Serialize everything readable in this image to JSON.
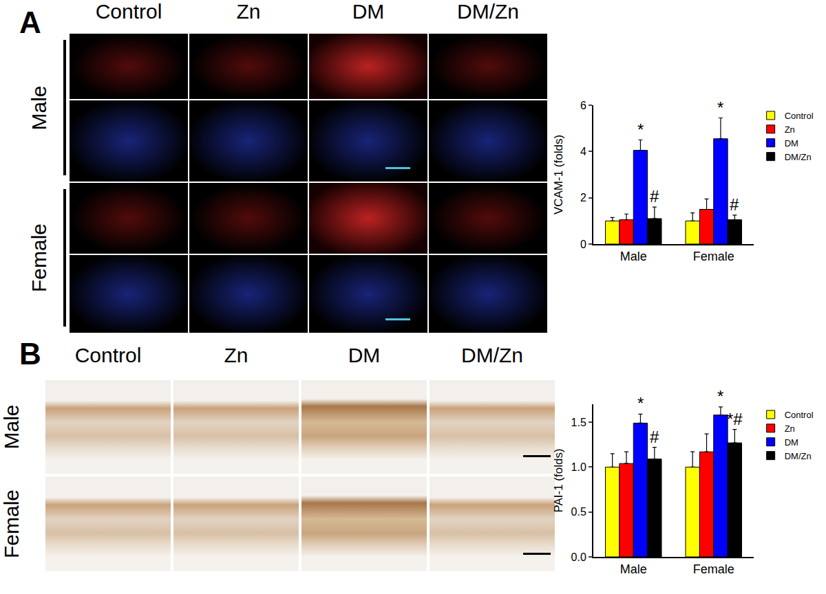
{
  "panels": [
    {
      "label": "A",
      "columns": [
        "Control",
        "Zn",
        "DM",
        "DM/Zn"
      ],
      "rows": [
        "Male",
        "Female"
      ]
    },
    {
      "label": "B",
      "columns": [
        "Control",
        "Zn",
        "DM",
        "DM/Zn"
      ],
      "rows": [
        "Male",
        "Female"
      ]
    }
  ],
  "chart_data": [
    {
      "type": "bar",
      "categories": [
        "Male",
        "Female"
      ],
      "y_label": "VCAM-1 (folds)",
      "ylim": [
        0,
        6
      ],
      "yticks": [
        0,
        2,
        4,
        6
      ],
      "grid": false,
      "legend": "top right",
      "series": [
        {
          "name": "Control",
          "color": "#ffff00",
          "values": [
            1.0,
            1.0
          ],
          "errors": [
            0.15,
            0.35
          ]
        },
        {
          "name": "Zn",
          "color": "#ff0000",
          "values": [
            1.05,
            1.5
          ],
          "errors": [
            0.25,
            0.45
          ]
        },
        {
          "name": "DM",
          "color": "#0000ff",
          "values": [
            4.05,
            4.55
          ],
          "errors": [
            0.45,
            0.9
          ]
        },
        {
          "name": "DM/Zn",
          "color": "#000000",
          "values": [
            1.1,
            1.05
          ],
          "errors": [
            0.5,
            0.2
          ]
        }
      ],
      "annotations": [
        {
          "text": "*",
          "category": "Male",
          "series": "DM"
        },
        {
          "text": "#",
          "category": "Male",
          "series": "DM/Zn"
        },
        {
          "text": "*",
          "category": "Female",
          "series": "DM"
        },
        {
          "text": "#",
          "category": "Female",
          "series": "DM/Zn"
        }
      ]
    },
    {
      "type": "bar",
      "categories": [
        "Male",
        "Female"
      ],
      "y_label": "PAI-1 (folds)",
      "ylim": [
        0,
        1.7
      ],
      "yticks": [
        {
          "value": 0,
          "label": "0.0"
        },
        {
          "value": 0.5,
          "label": "0.5"
        },
        {
          "value": 1,
          "label": "1.0"
        },
        {
          "value": 1.5,
          "label": "1.5"
        }
      ],
      "grid": false,
      "legend": "top right",
      "series": [
        {
          "name": "Control",
          "color": "#ffff00",
          "values": [
            1.0,
            1.0
          ],
          "errors": [
            0.15,
            0.17
          ]
        },
        {
          "name": "Zn",
          "color": "#ff0000",
          "values": [
            1.04,
            1.17
          ],
          "errors": [
            0.13,
            0.2
          ]
        },
        {
          "name": "DM",
          "color": "#0000ff",
          "values": [
            1.49,
            1.58
          ],
          "errors": [
            0.1,
            0.09
          ]
        },
        {
          "name": "DM/Zn",
          "color": "#000000",
          "values": [
            1.09,
            1.27
          ],
          "errors": [
            0.13,
            0.15
          ]
        }
      ],
      "annotations": [
        {
          "text": "*",
          "category": "Male",
          "series": "DM"
        },
        {
          "text": "#",
          "category": "Male",
          "series": "DM/Zn"
        },
        {
          "text": "*",
          "category": "Female",
          "series": "DM"
        },
        {
          "text": "*#",
          "category": "Female",
          "series": "DM/Zn"
        }
      ]
    }
  ]
}
